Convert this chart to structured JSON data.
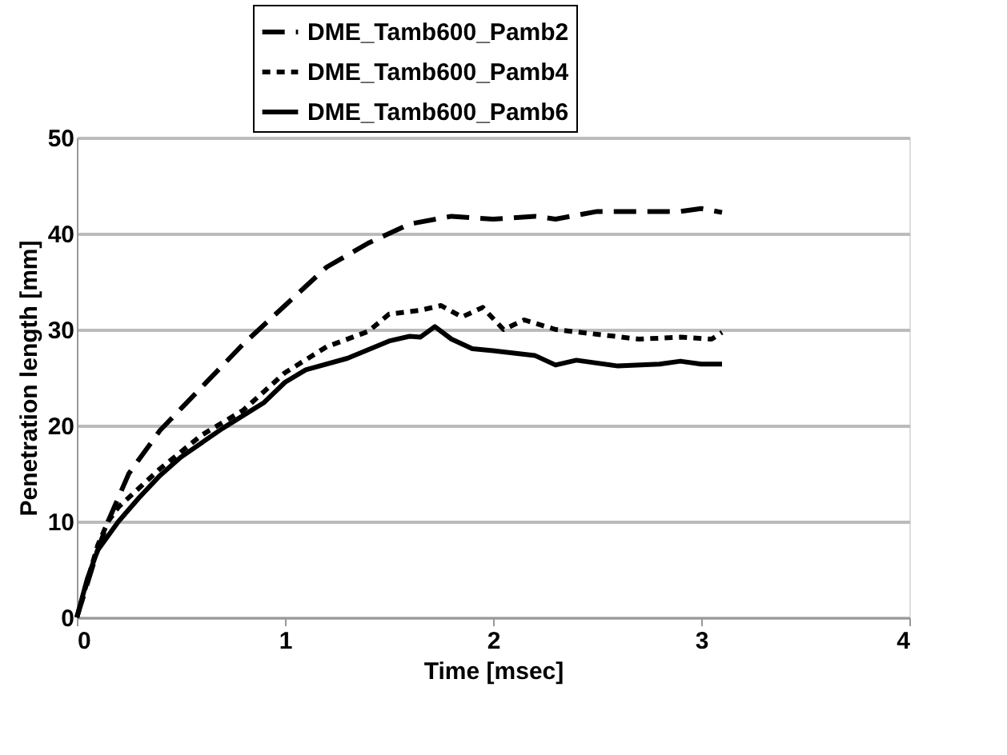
{
  "chart_data": {
    "type": "line",
    "xlabel": "Time [msec]",
    "ylabel": "Penetration length [mm]",
    "xlim": [
      0,
      4
    ],
    "xticks": [
      0,
      1,
      2,
      3,
      4
    ],
    "ylim": [
      0,
      50
    ],
    "yticks": [
      0,
      10,
      20,
      30,
      40,
      50
    ],
    "grid": "y",
    "legend": "top",
    "marker": "none",
    "series": [
      {
        "name": "DME_Tamb600_Pamb2",
        "color": "#000000",
        "line_style": "dashed",
        "x": [
          0,
          0.1,
          0.15,
          0.25,
          0.4,
          0.6,
          0.8,
          1.0,
          1.2,
          1.4,
          1.6,
          1.8,
          2.0,
          2.2,
          2.3,
          2.5,
          2.7,
          2.9,
          3.0,
          3.1
        ],
        "values": [
          0,
          7,
          10,
          15,
          19.5,
          24,
          28.5,
          32.5,
          36.5,
          39,
          41,
          41.8,
          41.5,
          41.8,
          41.5,
          42.3,
          42.3,
          42.3,
          42.6,
          42.2
        ]
      },
      {
        "name": "DME_Tamb600_Pamb4",
        "color": "#000000",
        "line_style": "dotted",
        "x": [
          0,
          0.1,
          0.15,
          0.2,
          0.4,
          0.6,
          0.8,
          1.0,
          1.2,
          1.4,
          1.5,
          1.65,
          1.75,
          1.85,
          1.95,
          2.05,
          2.15,
          2.3,
          2.5,
          2.7,
          2.9,
          3.05,
          3.1
        ],
        "values": [
          0,
          7.5,
          10,
          11.5,
          15.5,
          19,
          21.6,
          25.5,
          28.2,
          29.8,
          31.6,
          32,
          32.5,
          31.3,
          32.3,
          30,
          31,
          30,
          29.5,
          29,
          29.2,
          29,
          29.7
        ]
      },
      {
        "name": "DME_Tamb600_Pamb6",
        "color": "#000000",
        "line_style": "solid",
        "x": [
          0,
          0.05,
          0.1,
          0.2,
          0.3,
          0.4,
          0.5,
          0.7,
          0.9,
          1.0,
          1.1,
          1.3,
          1.5,
          1.6,
          1.65,
          1.72,
          1.8,
          1.9,
          2.0,
          2.2,
          2.3,
          2.4,
          2.6,
          2.8,
          2.9,
          3.0,
          3.1
        ],
        "values": [
          0,
          4,
          7,
          10,
          12.5,
          14.8,
          16.7,
          19.7,
          22.4,
          24.5,
          25.8,
          27,
          28.8,
          29.3,
          29.2,
          30.3,
          29,
          28,
          27.8,
          27.3,
          26.3,
          26.8,
          26.2,
          26.4,
          26.7,
          26.4,
          26.4
        ]
      }
    ]
  }
}
